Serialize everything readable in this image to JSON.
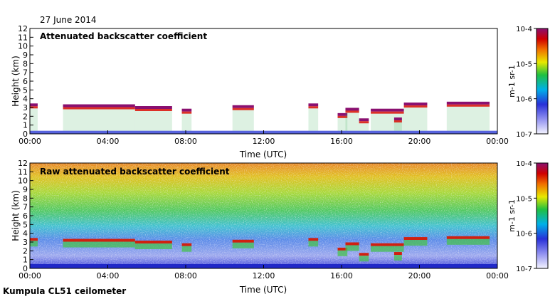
{
  "header": {
    "date": "27 June 2014"
  },
  "footer": {
    "instrument": "Kumpula CL51 ceilometer"
  },
  "chart_data": [
    {
      "type": "heatmap",
      "title": "Attenuated backscatter coefficient",
      "xlabel": "Time (UTC)",
      "ylabel": "Height (km)",
      "xlim": [
        0,
        24
      ],
      "ylim": [
        0,
        12
      ],
      "xticks": [
        "00:00",
        "04:00",
        "08:00",
        "12:00",
        "16:00",
        "20:00",
        "00:00"
      ],
      "yticks": [
        "0",
        "1",
        "2",
        "3",
        "4",
        "5",
        "6",
        "7",
        "8",
        "9",
        "10",
        "11",
        "12"
      ],
      "colorbar": {
        "label": "m-1 sr-1",
        "ticks": [
          "10-7",
          "10-6",
          "10-5",
          "10-4"
        ],
        "range_exp": [
          -7,
          -4
        ]
      },
      "cloud_layers": [
        {
          "t0": 0.0,
          "t1": 0.4,
          "h": 3.3
        },
        {
          "t0": 1.7,
          "t1": 5.4,
          "h": 3.2
        },
        {
          "t0": 5.4,
          "t1": 7.3,
          "h": 3.0
        },
        {
          "t0": 7.8,
          "t1": 8.3,
          "h": 2.7
        },
        {
          "t0": 10.4,
          "t1": 11.5,
          "h": 3.1
        },
        {
          "t0": 14.3,
          "t1": 14.8,
          "h": 3.3
        },
        {
          "t0": 15.8,
          "t1": 16.3,
          "h": 2.2
        },
        {
          "t0": 16.2,
          "t1": 16.9,
          "h": 2.8
        },
        {
          "t0": 16.9,
          "t1": 17.4,
          "h": 1.6
        },
        {
          "t0": 17.5,
          "t1": 19.2,
          "h": 2.7
        },
        {
          "t0": 18.7,
          "t1": 19.1,
          "h": 1.7
        },
        {
          "t0": 19.2,
          "t1": 20.4,
          "h": 3.4
        },
        {
          "t0": 21.4,
          "t1": 23.6,
          "h": 3.5
        }
      ]
    },
    {
      "type": "heatmap",
      "title": "Raw attenuated backscatter coefficient",
      "xlabel": "Time (UTC)",
      "ylabel": "Height (km)",
      "xlim": [
        0,
        24
      ],
      "ylim": [
        0,
        12
      ],
      "xticks": [
        "00:00",
        "04:00",
        "08:00",
        "12:00",
        "16:00",
        "20:00",
        "00:00"
      ],
      "yticks": [
        "0",
        "1",
        "2",
        "3",
        "4",
        "5",
        "6",
        "7",
        "8",
        "9",
        "10",
        "11",
        "12"
      ],
      "colorbar": {
        "label": "m-1 sr-1",
        "ticks": [
          "10-7",
          "10-6",
          "10-5",
          "10-4"
        ],
        "range_exp": [
          -7,
          -4
        ]
      }
    }
  ]
}
